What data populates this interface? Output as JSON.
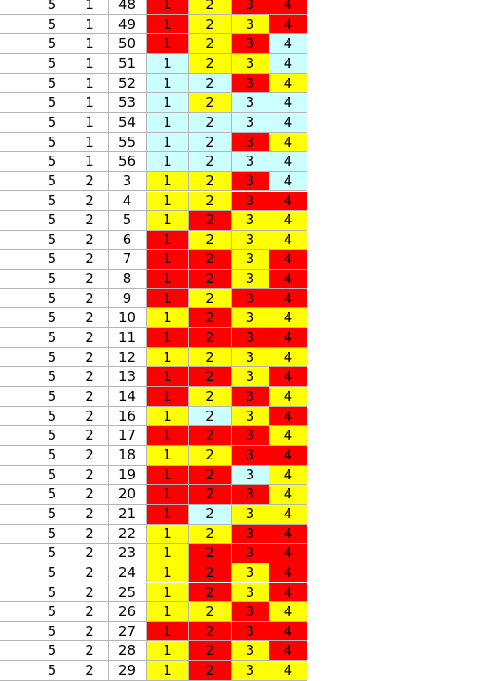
{
  "colors": {
    "red": "#ff0000",
    "yellow": "#ffff00",
    "cyan": "#ccffff",
    "white": "#ffffff"
  },
  "rows": [
    {
      "a": "5",
      "b": "1",
      "c": "48",
      "v": [
        {
          "t": "1",
          "c": "red"
        },
        {
          "t": "2",
          "c": "yellow"
        },
        {
          "t": "3",
          "c": "red"
        },
        {
          "t": "4",
          "c": "red"
        }
      ]
    },
    {
      "a": "5",
      "b": "1",
      "c": "49",
      "v": [
        {
          "t": "1",
          "c": "red"
        },
        {
          "t": "2",
          "c": "yellow"
        },
        {
          "t": "3",
          "c": "yellow"
        },
        {
          "t": "4",
          "c": "red"
        }
      ]
    },
    {
      "a": "5",
      "b": "1",
      "c": "50",
      "v": [
        {
          "t": "1",
          "c": "red"
        },
        {
          "t": "2",
          "c": "yellow"
        },
        {
          "t": "3",
          "c": "red"
        },
        {
          "t": "4",
          "c": "cyan"
        }
      ]
    },
    {
      "a": "5",
      "b": "1",
      "c": "51",
      "v": [
        {
          "t": "1",
          "c": "cyan"
        },
        {
          "t": "2",
          "c": "yellow"
        },
        {
          "t": "3",
          "c": "yellow"
        },
        {
          "t": "4",
          "c": "cyan"
        }
      ]
    },
    {
      "a": "5",
      "b": "1",
      "c": "52",
      "v": [
        {
          "t": "1",
          "c": "cyan"
        },
        {
          "t": "2",
          "c": "cyan"
        },
        {
          "t": "3",
          "c": "red"
        },
        {
          "t": "4",
          "c": "yellow"
        }
      ]
    },
    {
      "a": "5",
      "b": "1",
      "c": "53",
      "v": [
        {
          "t": "1",
          "c": "cyan"
        },
        {
          "t": "2",
          "c": "yellow"
        },
        {
          "t": "3",
          "c": "cyan"
        },
        {
          "t": "4",
          "c": "cyan"
        }
      ]
    },
    {
      "a": "5",
      "b": "1",
      "c": "54",
      "v": [
        {
          "t": "1",
          "c": "cyan"
        },
        {
          "t": "2",
          "c": "cyan"
        },
        {
          "t": "3",
          "c": "cyan"
        },
        {
          "t": "4",
          "c": "cyan"
        }
      ]
    },
    {
      "a": "5",
      "b": "1",
      "c": "55",
      "v": [
        {
          "t": "1",
          "c": "cyan"
        },
        {
          "t": "2",
          "c": "cyan"
        },
        {
          "t": "3",
          "c": "red"
        },
        {
          "t": "4",
          "c": "yellow"
        }
      ]
    },
    {
      "a": "5",
      "b": "1",
      "c": "56",
      "v": [
        {
          "t": "1",
          "c": "cyan"
        },
        {
          "t": "2",
          "c": "cyan"
        },
        {
          "t": "3",
          "c": "cyan"
        },
        {
          "t": "4",
          "c": "cyan"
        }
      ]
    },
    {
      "a": "5",
      "b": "2",
      "c": "3",
      "v": [
        {
          "t": "1",
          "c": "yellow"
        },
        {
          "t": "2",
          "c": "yellow"
        },
        {
          "t": "3",
          "c": "red"
        },
        {
          "t": "4",
          "c": "cyan"
        }
      ]
    },
    {
      "a": "5",
      "b": "2",
      "c": "4",
      "v": [
        {
          "t": "1",
          "c": "yellow"
        },
        {
          "t": "2",
          "c": "yellow"
        },
        {
          "t": "3",
          "c": "red"
        },
        {
          "t": "4",
          "c": "red"
        }
      ]
    },
    {
      "a": "5",
      "b": "2",
      "c": "5",
      "v": [
        {
          "t": "1",
          "c": "yellow"
        },
        {
          "t": "2",
          "c": "red"
        },
        {
          "t": "3",
          "c": "yellow"
        },
        {
          "t": "4",
          "c": "yellow"
        }
      ]
    },
    {
      "a": "5",
      "b": "2",
      "c": "6",
      "v": [
        {
          "t": "1",
          "c": "red"
        },
        {
          "t": "2",
          "c": "yellow"
        },
        {
          "t": "3",
          "c": "yellow"
        },
        {
          "t": "4",
          "c": "yellow"
        }
      ]
    },
    {
      "a": "5",
      "b": "2",
      "c": "7",
      "v": [
        {
          "t": "1",
          "c": "red"
        },
        {
          "t": "2",
          "c": "red"
        },
        {
          "t": "3",
          "c": "yellow"
        },
        {
          "t": "4",
          "c": "red"
        }
      ]
    },
    {
      "a": "5",
      "b": "2",
      "c": "8",
      "v": [
        {
          "t": "1",
          "c": "red"
        },
        {
          "t": "2",
          "c": "red"
        },
        {
          "t": "3",
          "c": "yellow"
        },
        {
          "t": "4",
          "c": "red"
        }
      ]
    },
    {
      "a": "5",
      "b": "2",
      "c": "9",
      "v": [
        {
          "t": "1",
          "c": "red"
        },
        {
          "t": "2",
          "c": "yellow"
        },
        {
          "t": "3",
          "c": "red"
        },
        {
          "t": "4",
          "c": "red"
        }
      ]
    },
    {
      "a": "5",
      "b": "2",
      "c": "10",
      "v": [
        {
          "t": "1",
          "c": "yellow"
        },
        {
          "t": "2",
          "c": "red"
        },
        {
          "t": "3",
          "c": "yellow"
        },
        {
          "t": "4",
          "c": "yellow"
        }
      ]
    },
    {
      "a": "5",
      "b": "2",
      "c": "11",
      "v": [
        {
          "t": "1",
          "c": "red"
        },
        {
          "t": "2",
          "c": "red"
        },
        {
          "t": "3",
          "c": "red"
        },
        {
          "t": "4",
          "c": "red"
        }
      ]
    },
    {
      "a": "5",
      "b": "2",
      "c": "12",
      "v": [
        {
          "t": "1",
          "c": "yellow"
        },
        {
          "t": "2",
          "c": "yellow"
        },
        {
          "t": "3",
          "c": "yellow"
        },
        {
          "t": "4",
          "c": "yellow"
        }
      ]
    },
    {
      "a": "5",
      "b": "2",
      "c": "13",
      "v": [
        {
          "t": "1",
          "c": "red"
        },
        {
          "t": "2",
          "c": "red"
        },
        {
          "t": "3",
          "c": "yellow"
        },
        {
          "t": "4",
          "c": "red"
        }
      ]
    },
    {
      "a": "5",
      "b": "2",
      "c": "14",
      "v": [
        {
          "t": "1",
          "c": "red"
        },
        {
          "t": "2",
          "c": "yellow"
        },
        {
          "t": "3",
          "c": "red"
        },
        {
          "t": "4",
          "c": "yellow"
        }
      ]
    },
    {
      "a": "5",
      "b": "2",
      "c": "16",
      "v": [
        {
          "t": "1",
          "c": "yellow"
        },
        {
          "t": "2",
          "c": "cyan"
        },
        {
          "t": "3",
          "c": "yellow"
        },
        {
          "t": "4",
          "c": "red"
        }
      ]
    },
    {
      "a": "5",
      "b": "2",
      "c": "17",
      "v": [
        {
          "t": "1",
          "c": "red"
        },
        {
          "t": "2",
          "c": "red"
        },
        {
          "t": "3",
          "c": "red"
        },
        {
          "t": "4",
          "c": "yellow"
        }
      ]
    },
    {
      "a": "5",
      "b": "2",
      "c": "18",
      "v": [
        {
          "t": "1",
          "c": "yellow"
        },
        {
          "t": "2",
          "c": "yellow"
        },
        {
          "t": "3",
          "c": "red"
        },
        {
          "t": "4",
          "c": "red"
        }
      ]
    },
    {
      "a": "5",
      "b": "2",
      "c": "19",
      "v": [
        {
          "t": "1",
          "c": "red"
        },
        {
          "t": "2",
          "c": "red"
        },
        {
          "t": "3",
          "c": "cyan"
        },
        {
          "t": "4",
          "c": "yellow"
        }
      ]
    },
    {
      "a": "5",
      "b": "2",
      "c": "20",
      "v": [
        {
          "t": "1",
          "c": "red"
        },
        {
          "t": "2",
          "c": "red"
        },
        {
          "t": "3",
          "c": "red"
        },
        {
          "t": "4",
          "c": "yellow"
        }
      ]
    },
    {
      "a": "5",
      "b": "2",
      "c": "21",
      "v": [
        {
          "t": "1",
          "c": "red"
        },
        {
          "t": "2",
          "c": "cyan"
        },
        {
          "t": "3",
          "c": "yellow"
        },
        {
          "t": "4",
          "c": "yellow"
        }
      ]
    },
    {
      "a": "5",
      "b": "2",
      "c": "22",
      "v": [
        {
          "t": "1",
          "c": "yellow"
        },
        {
          "t": "2",
          "c": "yellow"
        },
        {
          "t": "3",
          "c": "red"
        },
        {
          "t": "4",
          "c": "red"
        }
      ]
    },
    {
      "a": "5",
      "b": "2",
      "c": "23",
      "v": [
        {
          "t": "1",
          "c": "yellow"
        },
        {
          "t": "2",
          "c": "red"
        },
        {
          "t": "3",
          "c": "red"
        },
        {
          "t": "4",
          "c": "red"
        }
      ]
    },
    {
      "a": "5",
      "b": "2",
      "c": "24",
      "v": [
        {
          "t": "1",
          "c": "yellow"
        },
        {
          "t": "2",
          "c": "red"
        },
        {
          "t": "3",
          "c": "yellow"
        },
        {
          "t": "4",
          "c": "red"
        }
      ]
    },
    {
      "a": "5",
      "b": "2",
      "c": "25",
      "v": [
        {
          "t": "1",
          "c": "yellow"
        },
        {
          "t": "2",
          "c": "red"
        },
        {
          "t": "3",
          "c": "yellow"
        },
        {
          "t": "4",
          "c": "red"
        }
      ]
    },
    {
      "a": "5",
      "b": "2",
      "c": "26",
      "v": [
        {
          "t": "1",
          "c": "yellow"
        },
        {
          "t": "2",
          "c": "yellow"
        },
        {
          "t": "3",
          "c": "red"
        },
        {
          "t": "4",
          "c": "yellow"
        }
      ]
    },
    {
      "a": "5",
      "b": "2",
      "c": "27",
      "v": [
        {
          "t": "1",
          "c": "red"
        },
        {
          "t": "2",
          "c": "red"
        },
        {
          "t": "3",
          "c": "red"
        },
        {
          "t": "4",
          "c": "red"
        }
      ]
    },
    {
      "a": "5",
      "b": "2",
      "c": "28",
      "v": [
        {
          "t": "1",
          "c": "yellow"
        },
        {
          "t": "2",
          "c": "red"
        },
        {
          "t": "3",
          "c": "yellow"
        },
        {
          "t": "4",
          "c": "red"
        }
      ]
    },
    {
      "a": "5",
      "b": "2",
      "c": "29",
      "v": [
        {
          "t": "1",
          "c": "yellow"
        },
        {
          "t": "2",
          "c": "red"
        },
        {
          "t": "3",
          "c": "yellow"
        },
        {
          "t": "4",
          "c": "yellow"
        }
      ]
    }
  ]
}
